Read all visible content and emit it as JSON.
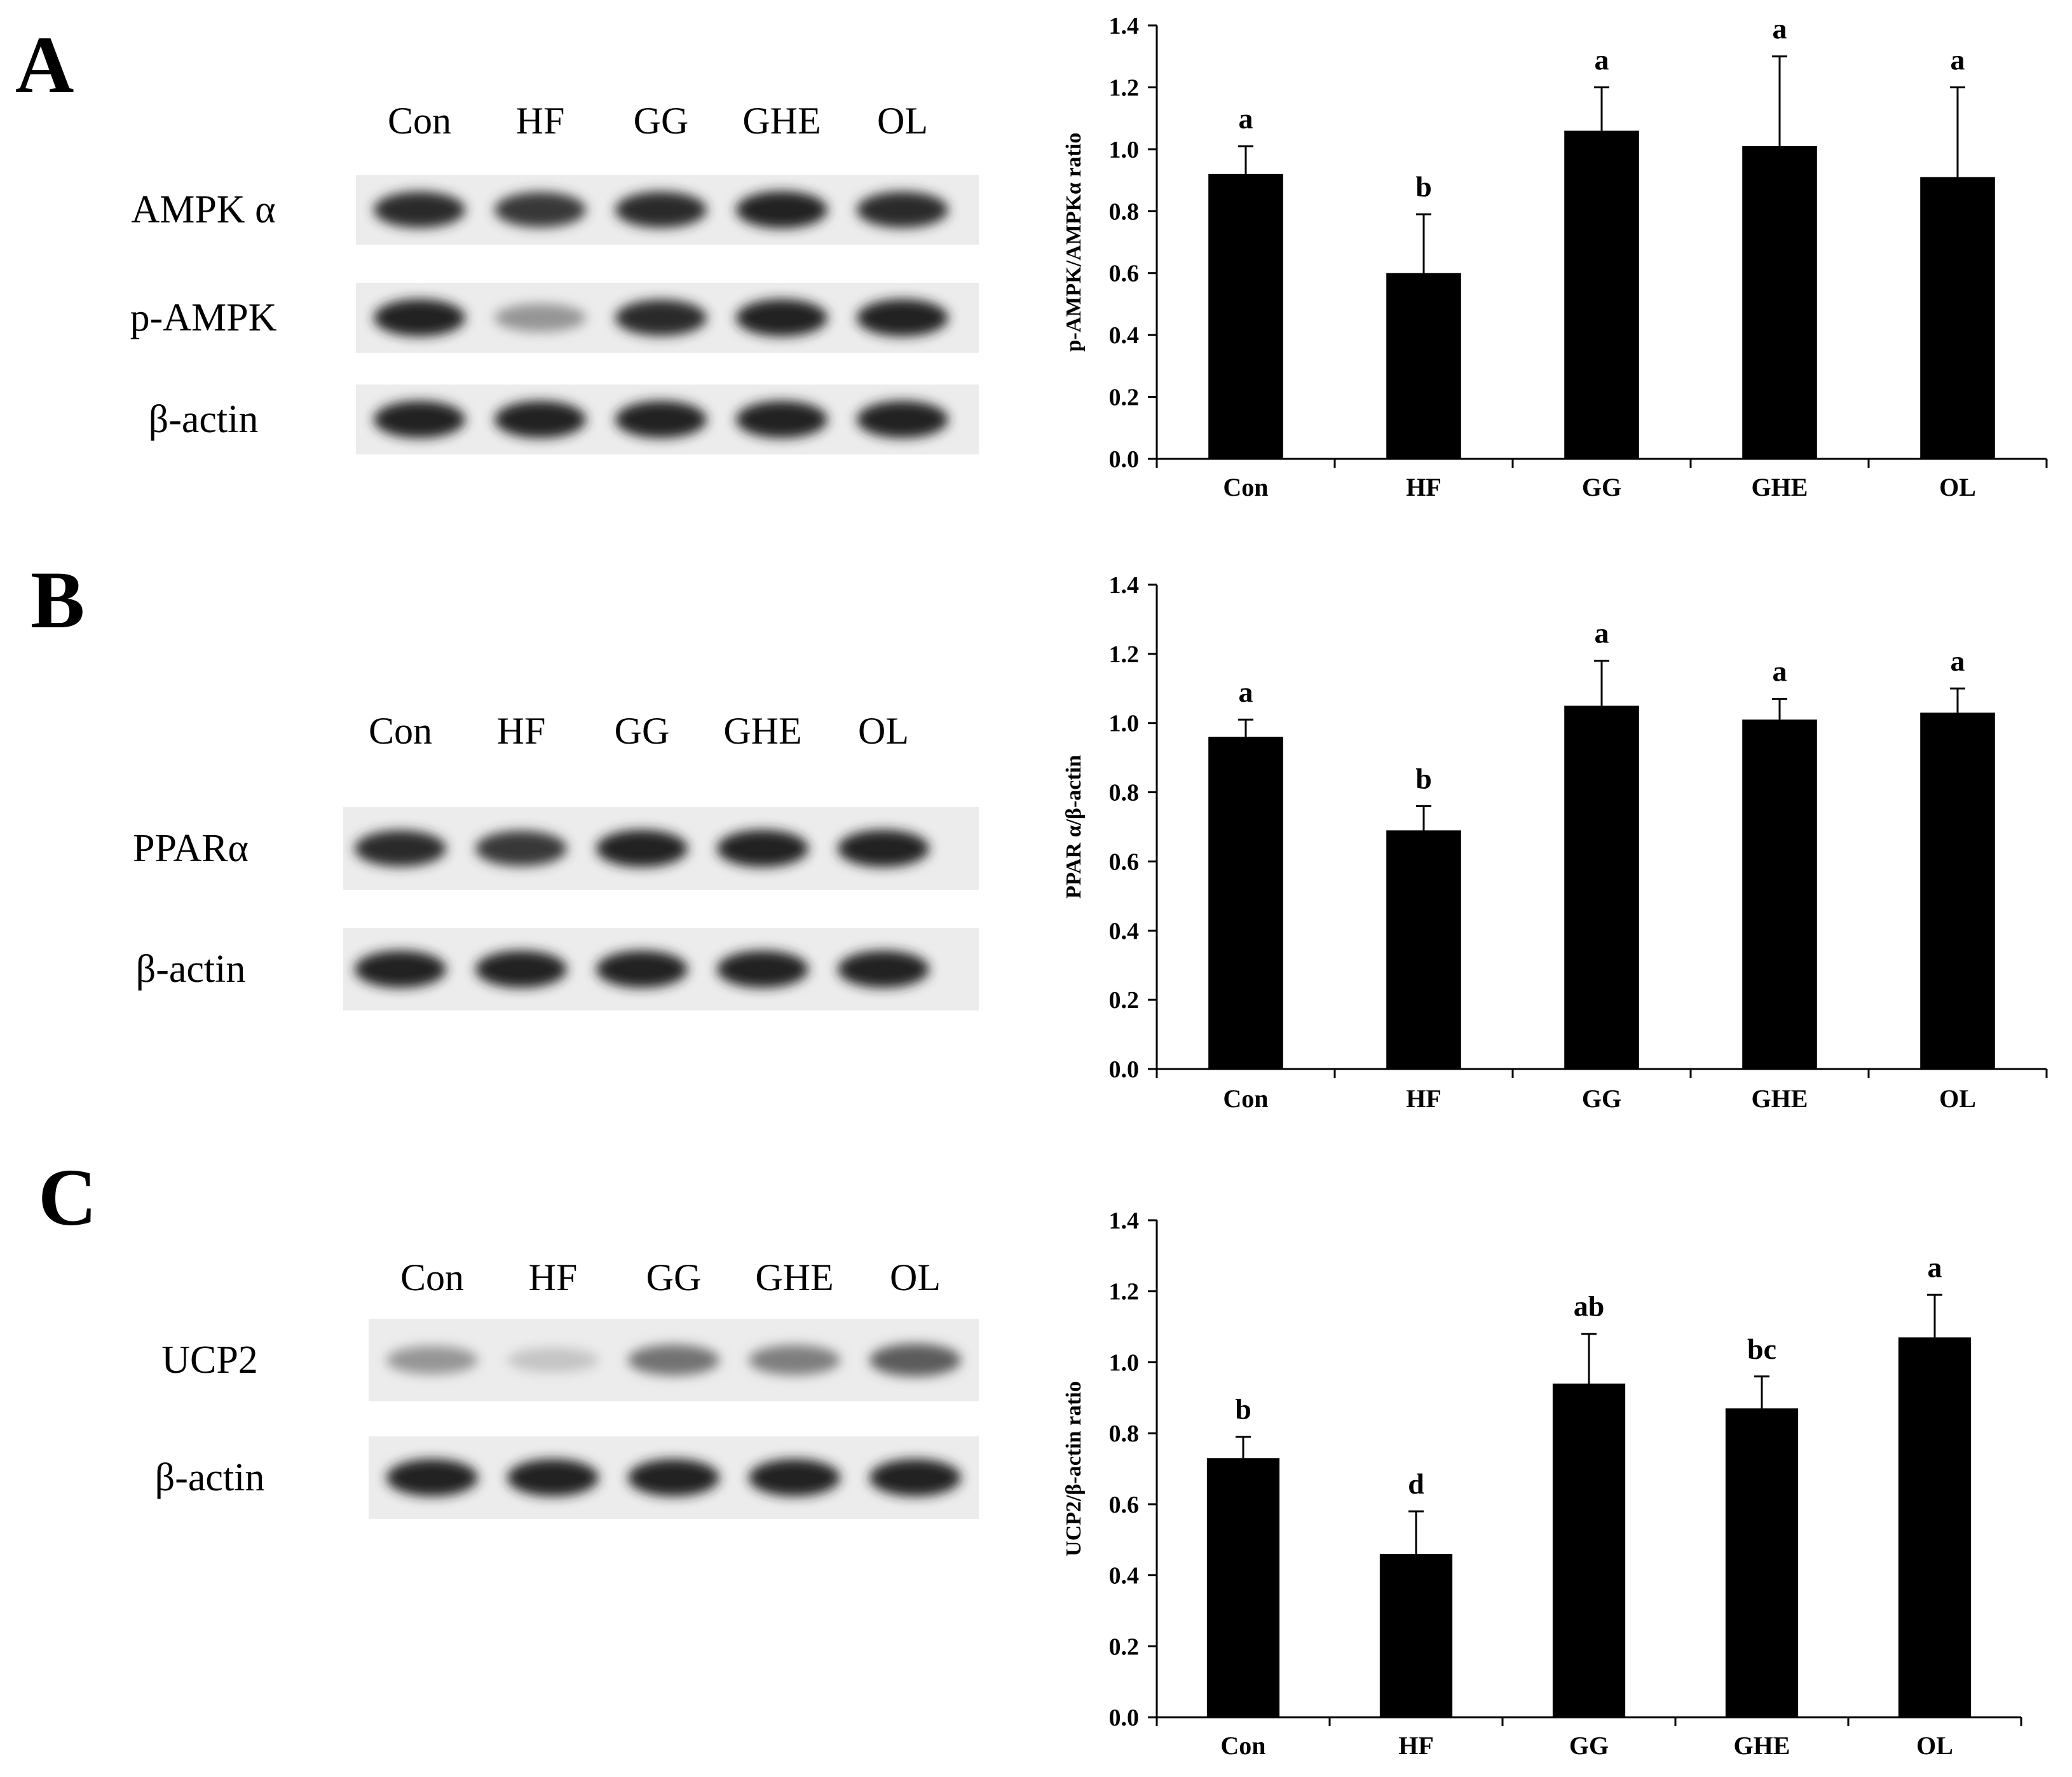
{
  "panels": [
    {
      "letter": "A",
      "blot": {
        "lanes": [
          "Con",
          "HF",
          "GG",
          "GHE",
          "OL"
        ],
        "rows": [
          {
            "label": "AMPK α",
            "intensities": [
              0.9,
              0.85,
              0.9,
              0.95,
              0.9
            ]
          },
          {
            "label": "p-AMPK",
            "intensities": [
              0.95,
              0.45,
              0.9,
              0.95,
              0.95
            ]
          },
          {
            "label": "β-actin",
            "intensities": [
              0.95,
              0.95,
              0.95,
              0.95,
              0.95
            ]
          }
        ]
      }
    },
    {
      "letter": "B",
      "blot": {
        "lanes": [
          "Con",
          "HF",
          "GG",
          "GHE",
          "OL"
        ],
        "rows": [
          {
            "label": "PPARα",
            "intensities": [
              0.9,
              0.85,
              0.95,
              0.95,
              0.95
            ]
          },
          {
            "label": "β-actin",
            "intensities": [
              0.95,
              0.95,
              0.95,
              0.95,
              0.95
            ]
          }
        ]
      }
    },
    {
      "letter": "C",
      "blot": {
        "lanes": [
          "Con",
          "HF",
          "GG",
          "GHE",
          "OL"
        ],
        "rows": [
          {
            "label": "UCP2",
            "intensities": [
              0.45,
              0.25,
              0.6,
              0.55,
              0.7
            ]
          },
          {
            "label": "β-actin",
            "intensities": [
              0.95,
              0.95,
              0.95,
              0.95,
              0.95
            ]
          }
        ]
      }
    }
  ],
  "chart_data": [
    {
      "type": "bar",
      "categories": [
        "Con",
        "HF",
        "GG",
        "GHE",
        "OL"
      ],
      "values": [
        0.92,
        0.6,
        1.06,
        1.01,
        0.91
      ],
      "errors": [
        0.09,
        0.19,
        0.14,
        0.29,
        0.29
      ],
      "significance": [
        "a",
        "b",
        "a",
        "a",
        "a"
      ],
      "ylabel": "p-AMPK/AMPKα ratio",
      "xlabel": "",
      "ylim": [
        0,
        1.4
      ],
      "yticks": [
        "0.0",
        "0.2",
        "0.4",
        "0.6",
        "0.8",
        "1.0",
        "1.2",
        "1.4"
      ],
      "grid": false,
      "bar_color": "#000000"
    },
    {
      "type": "bar",
      "categories": [
        "Con",
        "HF",
        "GG",
        "GHE",
        "OL"
      ],
      "values": [
        0.96,
        0.69,
        1.05,
        1.01,
        1.03
      ],
      "errors": [
        0.05,
        0.07,
        0.13,
        0.06,
        0.07
      ],
      "significance": [
        "a",
        "b",
        "a",
        "a",
        "a"
      ],
      "ylabel": "PPAR α/β-actin",
      "xlabel": "",
      "ylim": [
        0,
        1.4
      ],
      "yticks": [
        "0.0",
        "0.2",
        "0.4",
        "0.6",
        "0.8",
        "1.0",
        "1.2",
        "1.4"
      ],
      "grid": false,
      "bar_color": "#000000"
    },
    {
      "type": "bar",
      "categories": [
        "Con",
        "HF",
        "GG",
        "GHE",
        "OL"
      ],
      "values": [
        0.73,
        0.46,
        0.94,
        0.87,
        1.07
      ],
      "errors": [
        0.06,
        0.12,
        0.14,
        0.09,
        0.12
      ],
      "significance": [
        "b",
        "d",
        "ab",
        "bc",
        "a"
      ],
      "ylabel": "UCP2/β-actin ratio",
      "xlabel": "",
      "ylim": [
        0,
        1.4
      ],
      "yticks": [
        "0.0",
        "0.2",
        "0.4",
        "0.6",
        "0.8",
        "1.0",
        "1.2",
        "1.4"
      ],
      "grid": false,
      "bar_color": "#000000"
    }
  ]
}
